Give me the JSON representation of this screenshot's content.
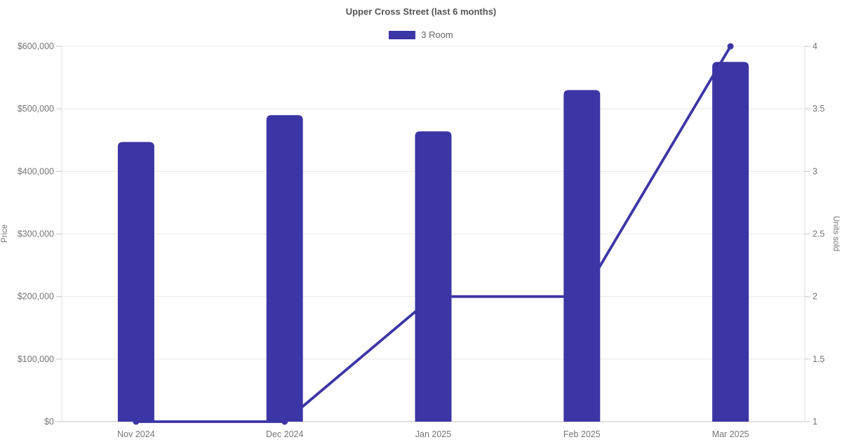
{
  "chart_data": {
    "type": "combo-bar-line",
    "title": "Upper Cross Street (last 6 months)",
    "categories": [
      "Nov 2024",
      "Dec 2024",
      "Jan 2025",
      "Feb 2025",
      "Mar 2025"
    ],
    "series": [
      {
        "name": "3 Room",
        "type": "bar",
        "axis": "left",
        "metric": "Price",
        "values": [
          447000,
          490000,
          464000,
          530000,
          575000
        ]
      },
      {
        "name": "3 Room",
        "type": "line",
        "axis": "right",
        "metric": "Units sold",
        "values": [
          1,
          1,
          2,
          2,
          4
        ]
      }
    ],
    "legend": [
      {
        "label": "3 Room",
        "color": "#3c35a5"
      }
    ],
    "legend_position": "top",
    "axes": {
      "left": {
        "label": "Price",
        "min": 0,
        "max": 600000,
        "tick_step": 100000,
        "tick_labels": [
          "$0",
          "$100,000",
          "$200,000",
          "$300,000",
          "$400,000",
          "$500,000",
          "$600,000"
        ]
      },
      "right": {
        "label": "Units sold",
        "min": 1,
        "max": 4,
        "tick_step": 0.5,
        "tick_labels": [
          "1",
          "1.5",
          "2",
          "2.5",
          "3",
          "3.5",
          "4"
        ]
      }
    },
    "grid": true,
    "colors": {
      "bar": "#3c35a5",
      "line": "#3c35a5",
      "point": "#3c35a5",
      "grid": "#e9e9e9",
      "axis_line": "#dcdcdc",
      "baseline": "#c6c6c6",
      "tick": "#c6c6c6",
      "tick_text": "#757575",
      "title_text": "#555555",
      "background": "#ffffff"
    }
  }
}
